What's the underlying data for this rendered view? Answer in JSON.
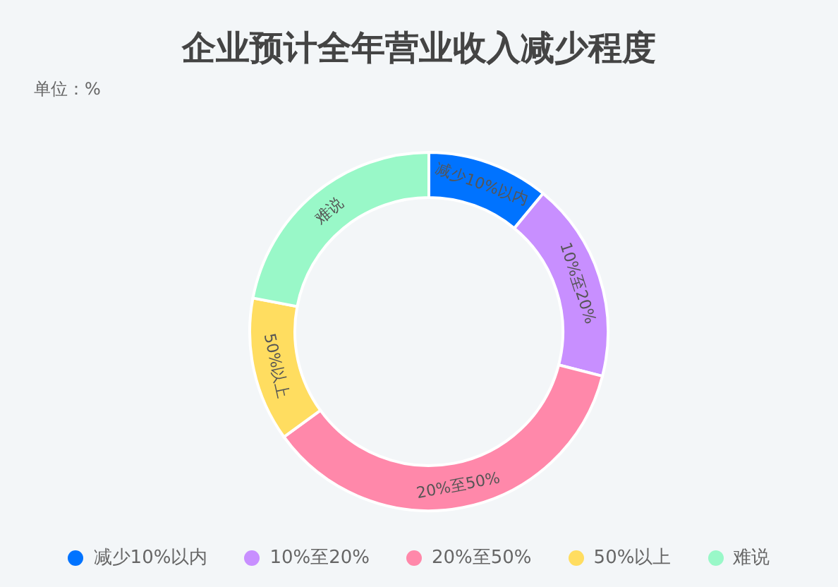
{
  "chart_data": {
    "type": "donut",
    "title": "企业预计全年营业收入减少程度",
    "subtitle": "单位：%",
    "categories": [
      "减少10%以内",
      "10%至20%",
      "20%至50%",
      "50%以上",
      "难说"
    ],
    "values": [
      11,
      18,
      36,
      13,
      22
    ],
    "colors": [
      "#0073ff",
      "#c88fff",
      "#ff88aa",
      "#ffdd60",
      "#99f8c8"
    ],
    "legend": "bottom"
  }
}
